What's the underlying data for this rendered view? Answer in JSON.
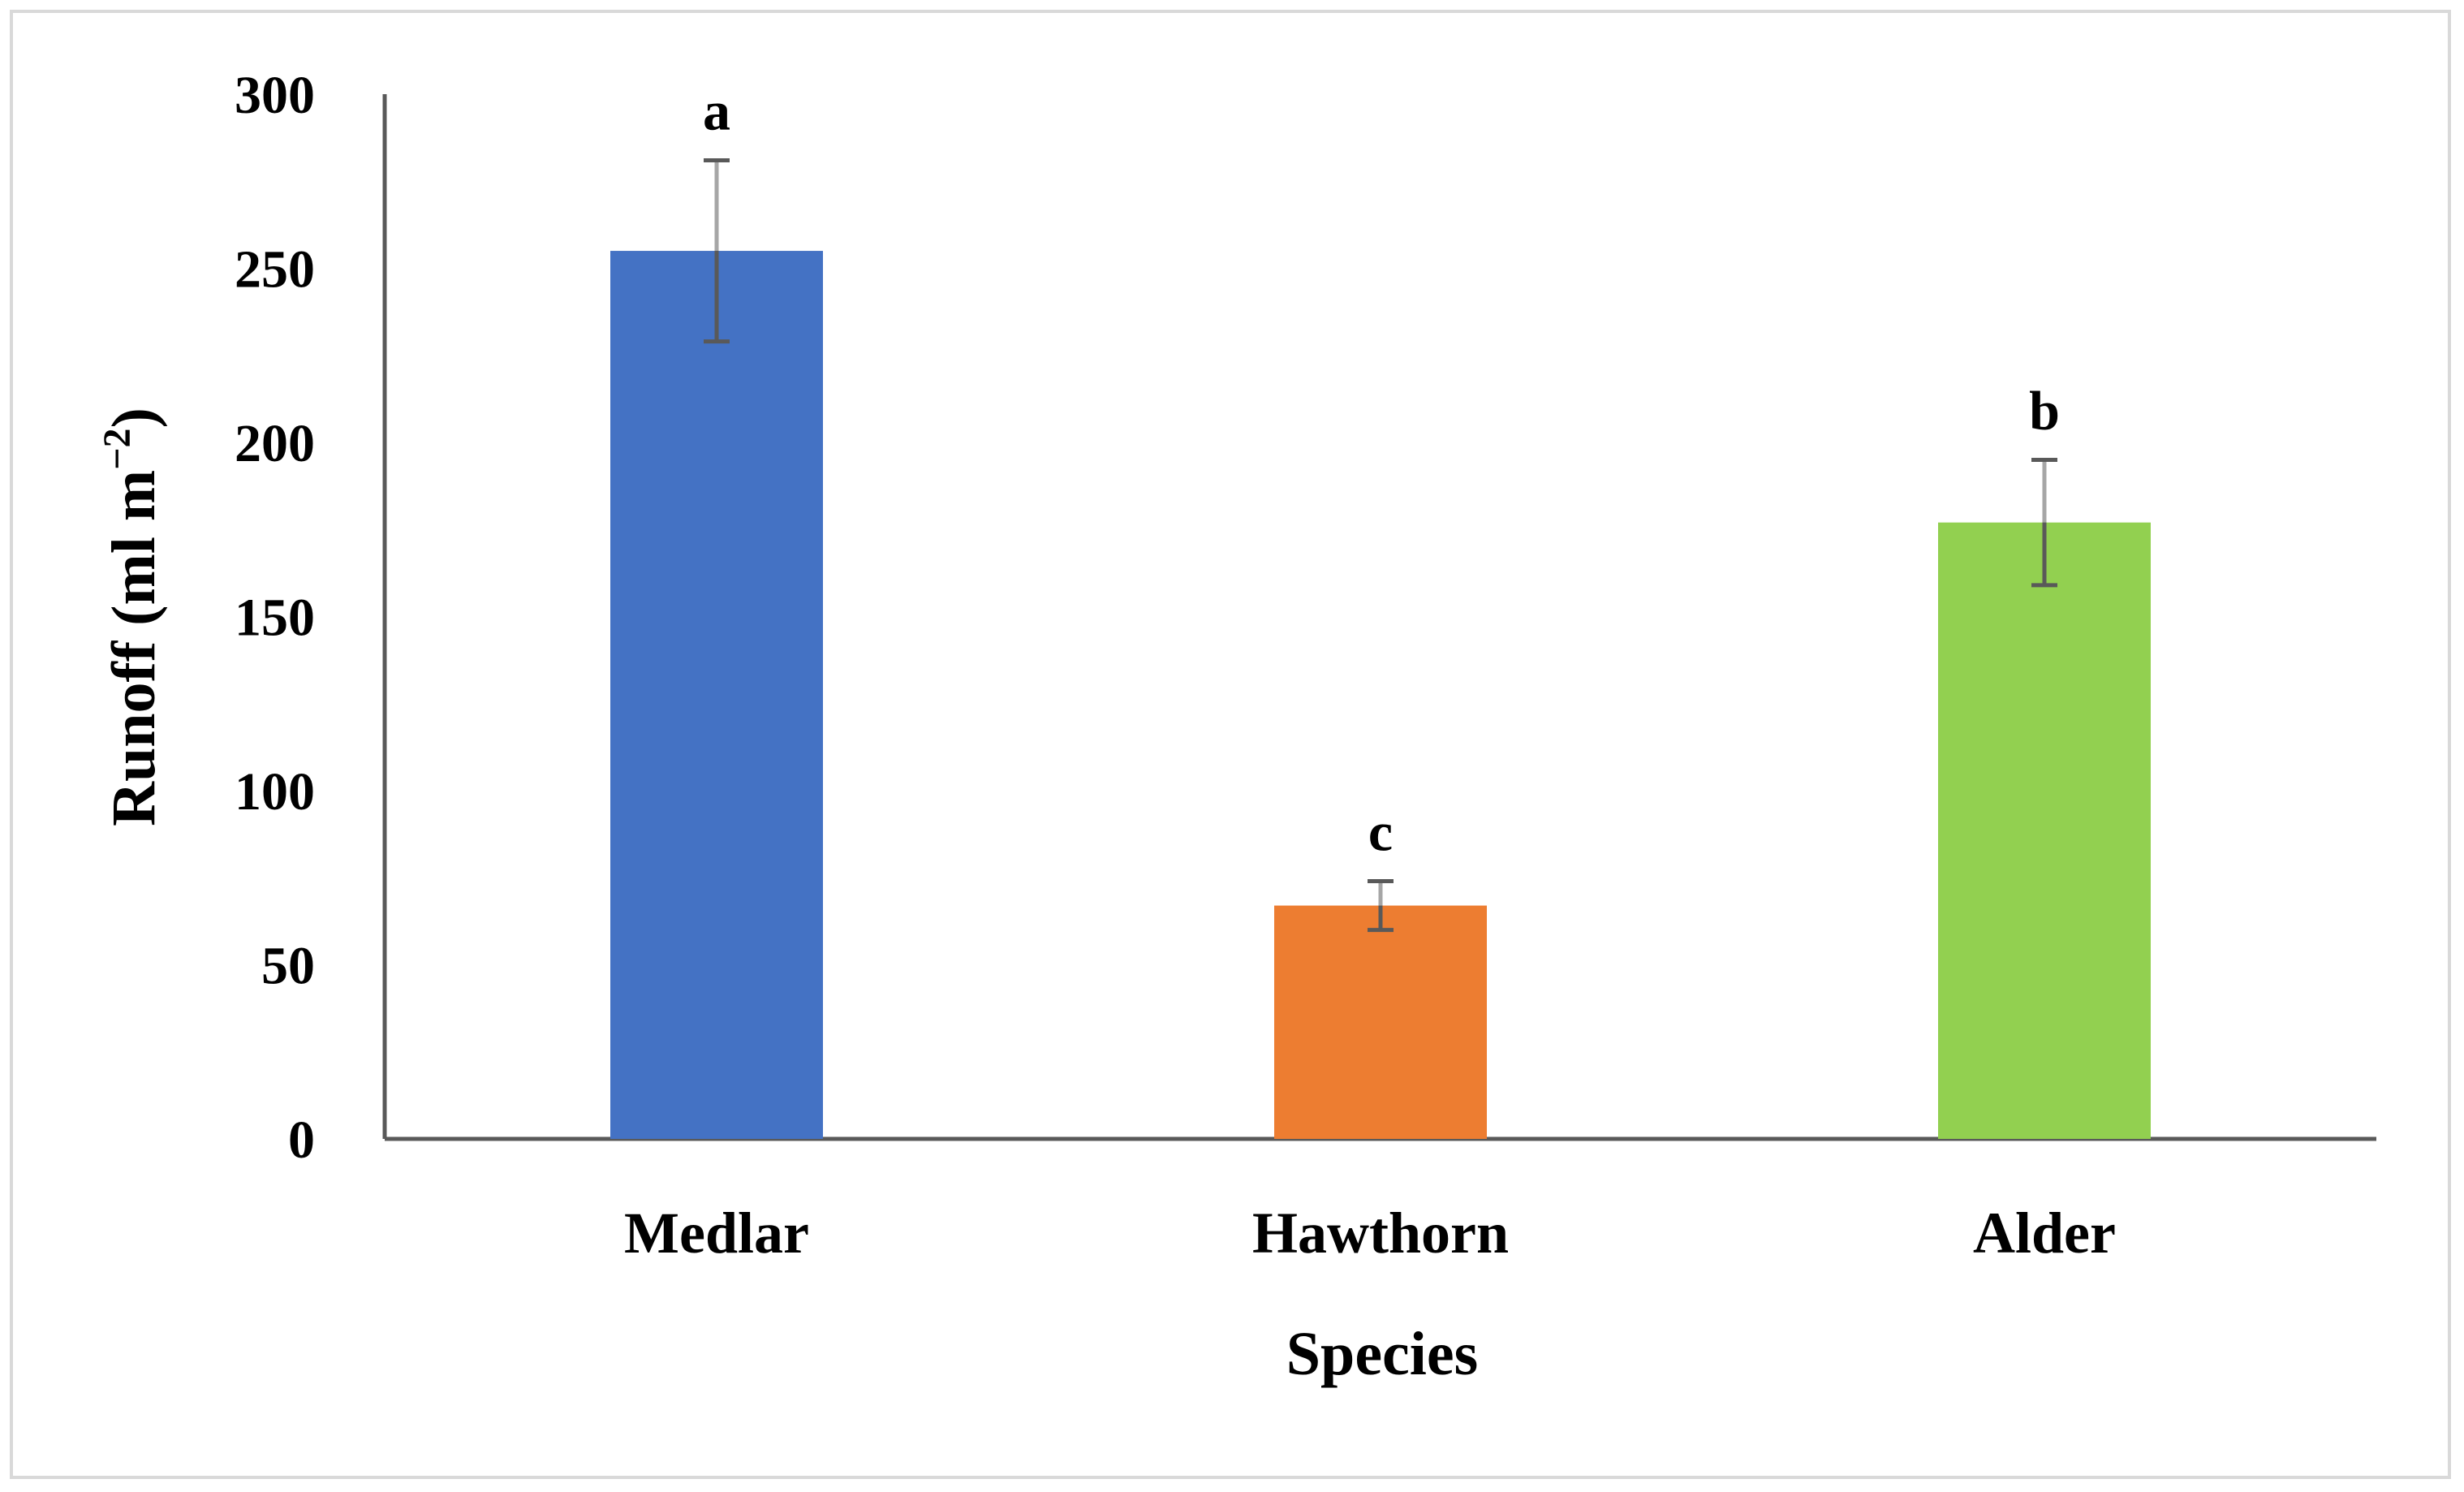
{
  "chart_data": {
    "type": "bar",
    "title": "",
    "xlabel": "Species",
    "ylabel_main": "Runoff (ml m",
    "ylabel_sup": "−2",
    "ylabel_close": ")",
    "ylim": [
      0,
      300
    ],
    "yticks": [
      "0",
      "50",
      "100",
      "150",
      "200",
      "250",
      "300"
    ],
    "categories": [
      "Medlar",
      "Hawthorn",
      "Alder"
    ],
    "values": [
      255,
      67,
      177
    ],
    "errors": [
      26,
      7,
      18
    ],
    "significance": [
      "a",
      "c",
      "b"
    ],
    "colors": [
      "#4472C4",
      "#ED7D31",
      "#92D050"
    ],
    "grid": false
  }
}
